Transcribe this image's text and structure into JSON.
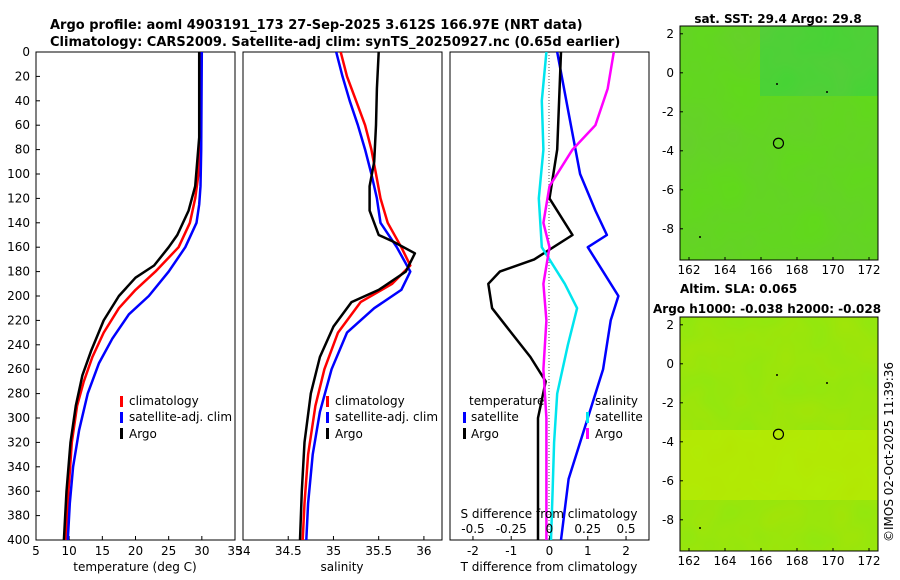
{
  "title": {
    "line1": "Argo profile: aoml 4903191_173 27-Sep-2025 3.612S 166.97E (NRT data)",
    "line2": "Climatology: CARS2009. Satellite-adj clim: synTS_20250927.nc (0.65d earlier)"
  },
  "side_label": "©IMOS 02-Oct-2025 11:39:36",
  "colors": {
    "climatology": "#ff0000",
    "satellite": "#0000ff",
    "argo": "#000000",
    "sal_satellite": "#00e5ee",
    "sal_argo": "#ff00ff",
    "map_base": "#5fdc16",
    "map_dark": "#20c040",
    "map_light": "#a8f000"
  },
  "chart_data": [
    {
      "type": "line",
      "name": "temperature-profile",
      "xlabel": "temperature (deg C)",
      "ylabel": "",
      "xlim": [
        5,
        35
      ],
      "ylim": [
        400,
        0
      ],
      "xticks": [
        5,
        10,
        15,
        20,
        25,
        30,
        35
      ],
      "yticks": [
        0,
        20,
        40,
        60,
        80,
        100,
        120,
        140,
        160,
        180,
        200,
        220,
        240,
        260,
        280,
        300,
        320,
        340,
        360,
        380,
        400
      ],
      "legend": [
        "climatology",
        "satellite-adj. clim",
        "Argo"
      ],
      "series": [
        {
          "name": "climatology",
          "color": "#ff0000",
          "points": [
            [
              29.8,
              0
            ],
            [
              29.7,
              60
            ],
            [
              29.5,
              100
            ],
            [
              29.0,
              120
            ],
            [
              28.2,
              140
            ],
            [
              26.5,
              160
            ],
            [
              23.0,
              180
            ],
            [
              20.0,
              195
            ],
            [
              17.5,
              210
            ],
            [
              15.2,
              230
            ],
            [
              13.5,
              250
            ],
            [
              12.2,
              270
            ],
            [
              11.2,
              290
            ],
            [
              10.4,
              320
            ],
            [
              9.9,
              360
            ],
            [
              9.5,
              400
            ]
          ]
        },
        {
          "name": "satellite-adj. clim",
          "color": "#0000ff",
          "points": [
            [
              30.0,
              0
            ],
            [
              29.9,
              80
            ],
            [
              29.8,
              110
            ],
            [
              29.6,
              125
            ],
            [
              29.2,
              140
            ],
            [
              27.5,
              160
            ],
            [
              25.0,
              180
            ],
            [
              22.0,
              200
            ],
            [
              19.0,
              215
            ],
            [
              16.5,
              235
            ],
            [
              14.5,
              255
            ],
            [
              12.8,
              280
            ],
            [
              11.5,
              310
            ],
            [
              10.6,
              340
            ],
            [
              10.1,
              370
            ],
            [
              9.8,
              400
            ]
          ]
        },
        {
          "name": "Argo",
          "color": "#000000",
          "points": [
            [
              29.6,
              0
            ],
            [
              29.6,
              70
            ],
            [
              29.3,
              90
            ],
            [
              29.0,
              110
            ],
            [
              28.0,
              130
            ],
            [
              26.3,
              150
            ],
            [
              25.0,
              160
            ],
            [
              22.8,
              175
            ],
            [
              20.0,
              185
            ],
            [
              17.5,
              200
            ],
            [
              15.2,
              220
            ],
            [
              13.3,
              245
            ],
            [
              12.0,
              265
            ],
            [
              11.0,
              290
            ],
            [
              10.2,
              320
            ],
            [
              9.6,
              360
            ],
            [
              9.2,
              400
            ]
          ]
        }
      ]
    },
    {
      "type": "line",
      "name": "salinity-profile",
      "xlabel": "salinity",
      "xlim": [
        34,
        36.2
      ],
      "ylim": [
        400,
        0
      ],
      "xticks": [
        34,
        34.5,
        35,
        35.5,
        36
      ],
      "xticklabels": [
        "34",
        "34.5",
        "35",
        "35.5",
        "36"
      ],
      "legend": [
        "climatology",
        "satellite-adj. clim",
        "Argo"
      ],
      "series": [
        {
          "name": "climatology",
          "color": "#ff0000",
          "points": [
            [
              35.08,
              0
            ],
            [
              35.15,
              20
            ],
            [
              35.25,
              40
            ],
            [
              35.35,
              60
            ],
            [
              35.42,
              80
            ],
            [
              35.47,
              100
            ],
            [
              35.52,
              120
            ],
            [
              35.6,
              140
            ],
            [
              35.75,
              160
            ],
            [
              35.85,
              175
            ],
            [
              35.65,
              190
            ],
            [
              35.3,
              205
            ],
            [
              35.05,
              230
            ],
            [
              34.9,
              260
            ],
            [
              34.8,
              290
            ],
            [
              34.72,
              330
            ],
            [
              34.68,
              370
            ],
            [
              34.66,
              400
            ]
          ]
        },
        {
          "name": "satellite-adj. clim",
          "color": "#0000ff",
          "points": [
            [
              35.03,
              0
            ],
            [
              35.1,
              20
            ],
            [
              35.18,
              40
            ],
            [
              35.27,
              60
            ],
            [
              35.35,
              80
            ],
            [
              35.42,
              100
            ],
            [
              35.48,
              120
            ],
            [
              35.52,
              140
            ],
            [
              35.7,
              160
            ],
            [
              35.85,
              180
            ],
            [
              35.75,
              195
            ],
            [
              35.45,
              210
            ],
            [
              35.15,
              230
            ],
            [
              34.98,
              260
            ],
            [
              34.85,
              295
            ],
            [
              34.77,
              330
            ],
            [
              34.72,
              370
            ],
            [
              34.7,
              400
            ]
          ]
        },
        {
          "name": "Argo",
          "color": "#000000",
          "points": [
            [
              35.5,
              0
            ],
            [
              35.48,
              30
            ],
            [
              35.47,
              60
            ],
            [
              35.45,
              90
            ],
            [
              35.4,
              110
            ],
            [
              35.4,
              130
            ],
            [
              35.5,
              150
            ],
            [
              35.65,
              155
            ],
            [
              35.9,
              165
            ],
            [
              35.8,
              180
            ],
            [
              35.5,
              195
            ],
            [
              35.2,
              205
            ],
            [
              35.0,
              225
            ],
            [
              34.85,
              250
            ],
            [
              34.75,
              280
            ],
            [
              34.68,
              320
            ],
            [
              34.65,
              360
            ],
            [
              34.63,
              400
            ]
          ]
        }
      ]
    },
    {
      "type": "line",
      "name": "difference-profile",
      "xlabel": "T difference from climatology",
      "xlabel_top": "S difference from climatology",
      "xlim": [
        -2.6,
        2.6
      ],
      "ylim": [
        400,
        0
      ],
      "xticks": [
        -2,
        -1,
        0,
        1,
        2
      ],
      "xticklabels": [
        "-2",
        "-1",
        "0",
        "1",
        "2"
      ],
      "sticklabels": [
        "-0.5",
        "-0.25",
        "0",
        "0.25",
        "0.5"
      ],
      "legend_temperature_title": "temperature",
      "legend_salinity_title": "salinity",
      "legend": [
        "satellite",
        "Argo",
        "satellite",
        "Argo"
      ],
      "series": [
        {
          "name": "T satellite",
          "color": "#0000ff",
          "points": [
            [
              0.2,
              0
            ],
            [
              0.5,
              50
            ],
            [
              0.8,
              100
            ],
            [
              1.2,
              130
            ],
            [
              1.5,
              150
            ],
            [
              1.0,
              160
            ],
            [
              1.4,
              180
            ],
            [
              1.8,
              200
            ],
            [
              1.6,
              220
            ],
            [
              1.4,
              260
            ],
            [
              1.0,
              300
            ],
            [
              0.5,
              350
            ],
            [
              0.3,
              400
            ]
          ]
        },
        {
          "name": "T Argo",
          "color": "#000000",
          "points": [
            [
              0.3,
              0
            ],
            [
              0.25,
              40
            ],
            [
              0.2,
              80
            ],
            [
              0.0,
              120
            ],
            [
              0.6,
              150
            ],
            [
              -0.4,
              170
            ],
            [
              -1.3,
              180
            ],
            [
              -1.6,
              190
            ],
            [
              -1.5,
              210
            ],
            [
              -1.0,
              230
            ],
            [
              -0.5,
              250
            ],
            [
              -0.1,
              270
            ],
            [
              -0.3,
              300
            ],
            [
              -0.3,
              340
            ],
            [
              -0.3,
              400
            ]
          ]
        },
        {
          "name": "S satellite",
          "color": "#00e5ee",
          "points": [
            [
              -0.02,
              0
            ],
            [
              -0.05,
              40
            ],
            [
              -0.04,
              80
            ],
            [
              -0.07,
              120
            ],
            [
              -0.05,
              160
            ],
            [
              0.1,
              190
            ],
            [
              0.18,
              210
            ],
            [
              0.12,
              240
            ],
            [
              0.05,
              280
            ],
            [
              0.03,
              320
            ],
            [
              0.02,
              360
            ],
            [
              0.01,
              400
            ]
          ]
        },
        {
          "name": "S Argo",
          "color": "#ff00ff",
          "points": [
            [
              0.42,
              0
            ],
            [
              0.38,
              30
            ],
            [
              0.3,
              60
            ],
            [
              0.15,
              80
            ],
            [
              0.0,
              110
            ],
            [
              -0.04,
              140
            ],
            [
              0.0,
              160
            ],
            [
              -0.04,
              190
            ],
            [
              -0.02,
              220
            ],
            [
              -0.04,
              260
            ],
            [
              -0.02,
              300
            ],
            [
              -0.02,
              340
            ],
            [
              -0.02,
              400
            ]
          ]
        }
      ]
    },
    {
      "type": "heatmap",
      "name": "sst-map",
      "title": "sat. SST: 29.4 Argo: 29.8",
      "xlim": [
        161.5,
        172.5
      ],
      "ylim": [
        -9.6,
        2.4
      ],
      "xticks": [
        162,
        164,
        166,
        168,
        170,
        172
      ],
      "yticks": [
        2,
        0,
        -2,
        -4,
        -6,
        -8
      ],
      "argo_position": [
        166.97,
        -3.612
      ]
    },
    {
      "type": "heatmap",
      "name": "sla-map",
      "title": "Altim. SLA: 0.065",
      "subtitle": "Argo h1000: -0.038 h2000: -0.028",
      "xlim": [
        161.5,
        172.5
      ],
      "ylim": [
        -9.6,
        2.4
      ],
      "xticks": [
        162,
        164,
        166,
        168,
        170,
        172
      ],
      "yticks": [
        2,
        0,
        -2,
        -4,
        -6,
        -8
      ],
      "argo_position": [
        166.97,
        -3.612
      ]
    }
  ]
}
